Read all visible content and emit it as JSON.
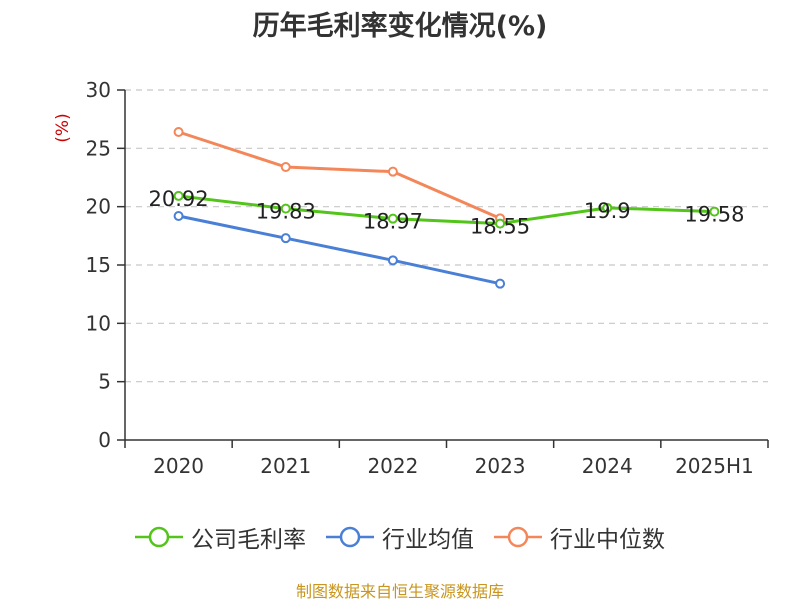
{
  "chart_data": {
    "type": "line",
    "title": "历年毛利率变化情况(%)",
    "ylabel": "(%)",
    "xlabel": "",
    "categories": [
      "2020",
      "2021",
      "2022",
      "2023",
      "2024",
      "2025H1"
    ],
    "yticks": [
      "0",
      "5",
      "10",
      "15",
      "20",
      "25",
      "30"
    ],
    "ylim": [
      0,
      30
    ],
    "grid": true,
    "legend_position": "bottom",
    "series": [
      {
        "name": "公司毛利率",
        "color": "#52c41a",
        "values": [
          20.92,
          19.83,
          18.97,
          18.55,
          19.9,
          19.58
        ],
        "labels": [
          "20.92",
          "19.83",
          "18.97",
          "18.55",
          "19.9",
          "19.58"
        ]
      },
      {
        "name": "行业均值",
        "color": "#4a7fd6",
        "values": [
          19.2,
          17.3,
          15.4,
          13.4,
          null,
          null
        ]
      },
      {
        "name": "行业中位数",
        "color": "#f4875a",
        "values": [
          26.4,
          23.4,
          23.0,
          19.0,
          null,
          null
        ]
      }
    ]
  },
  "source": "制图数据来自恒生聚源数据库"
}
